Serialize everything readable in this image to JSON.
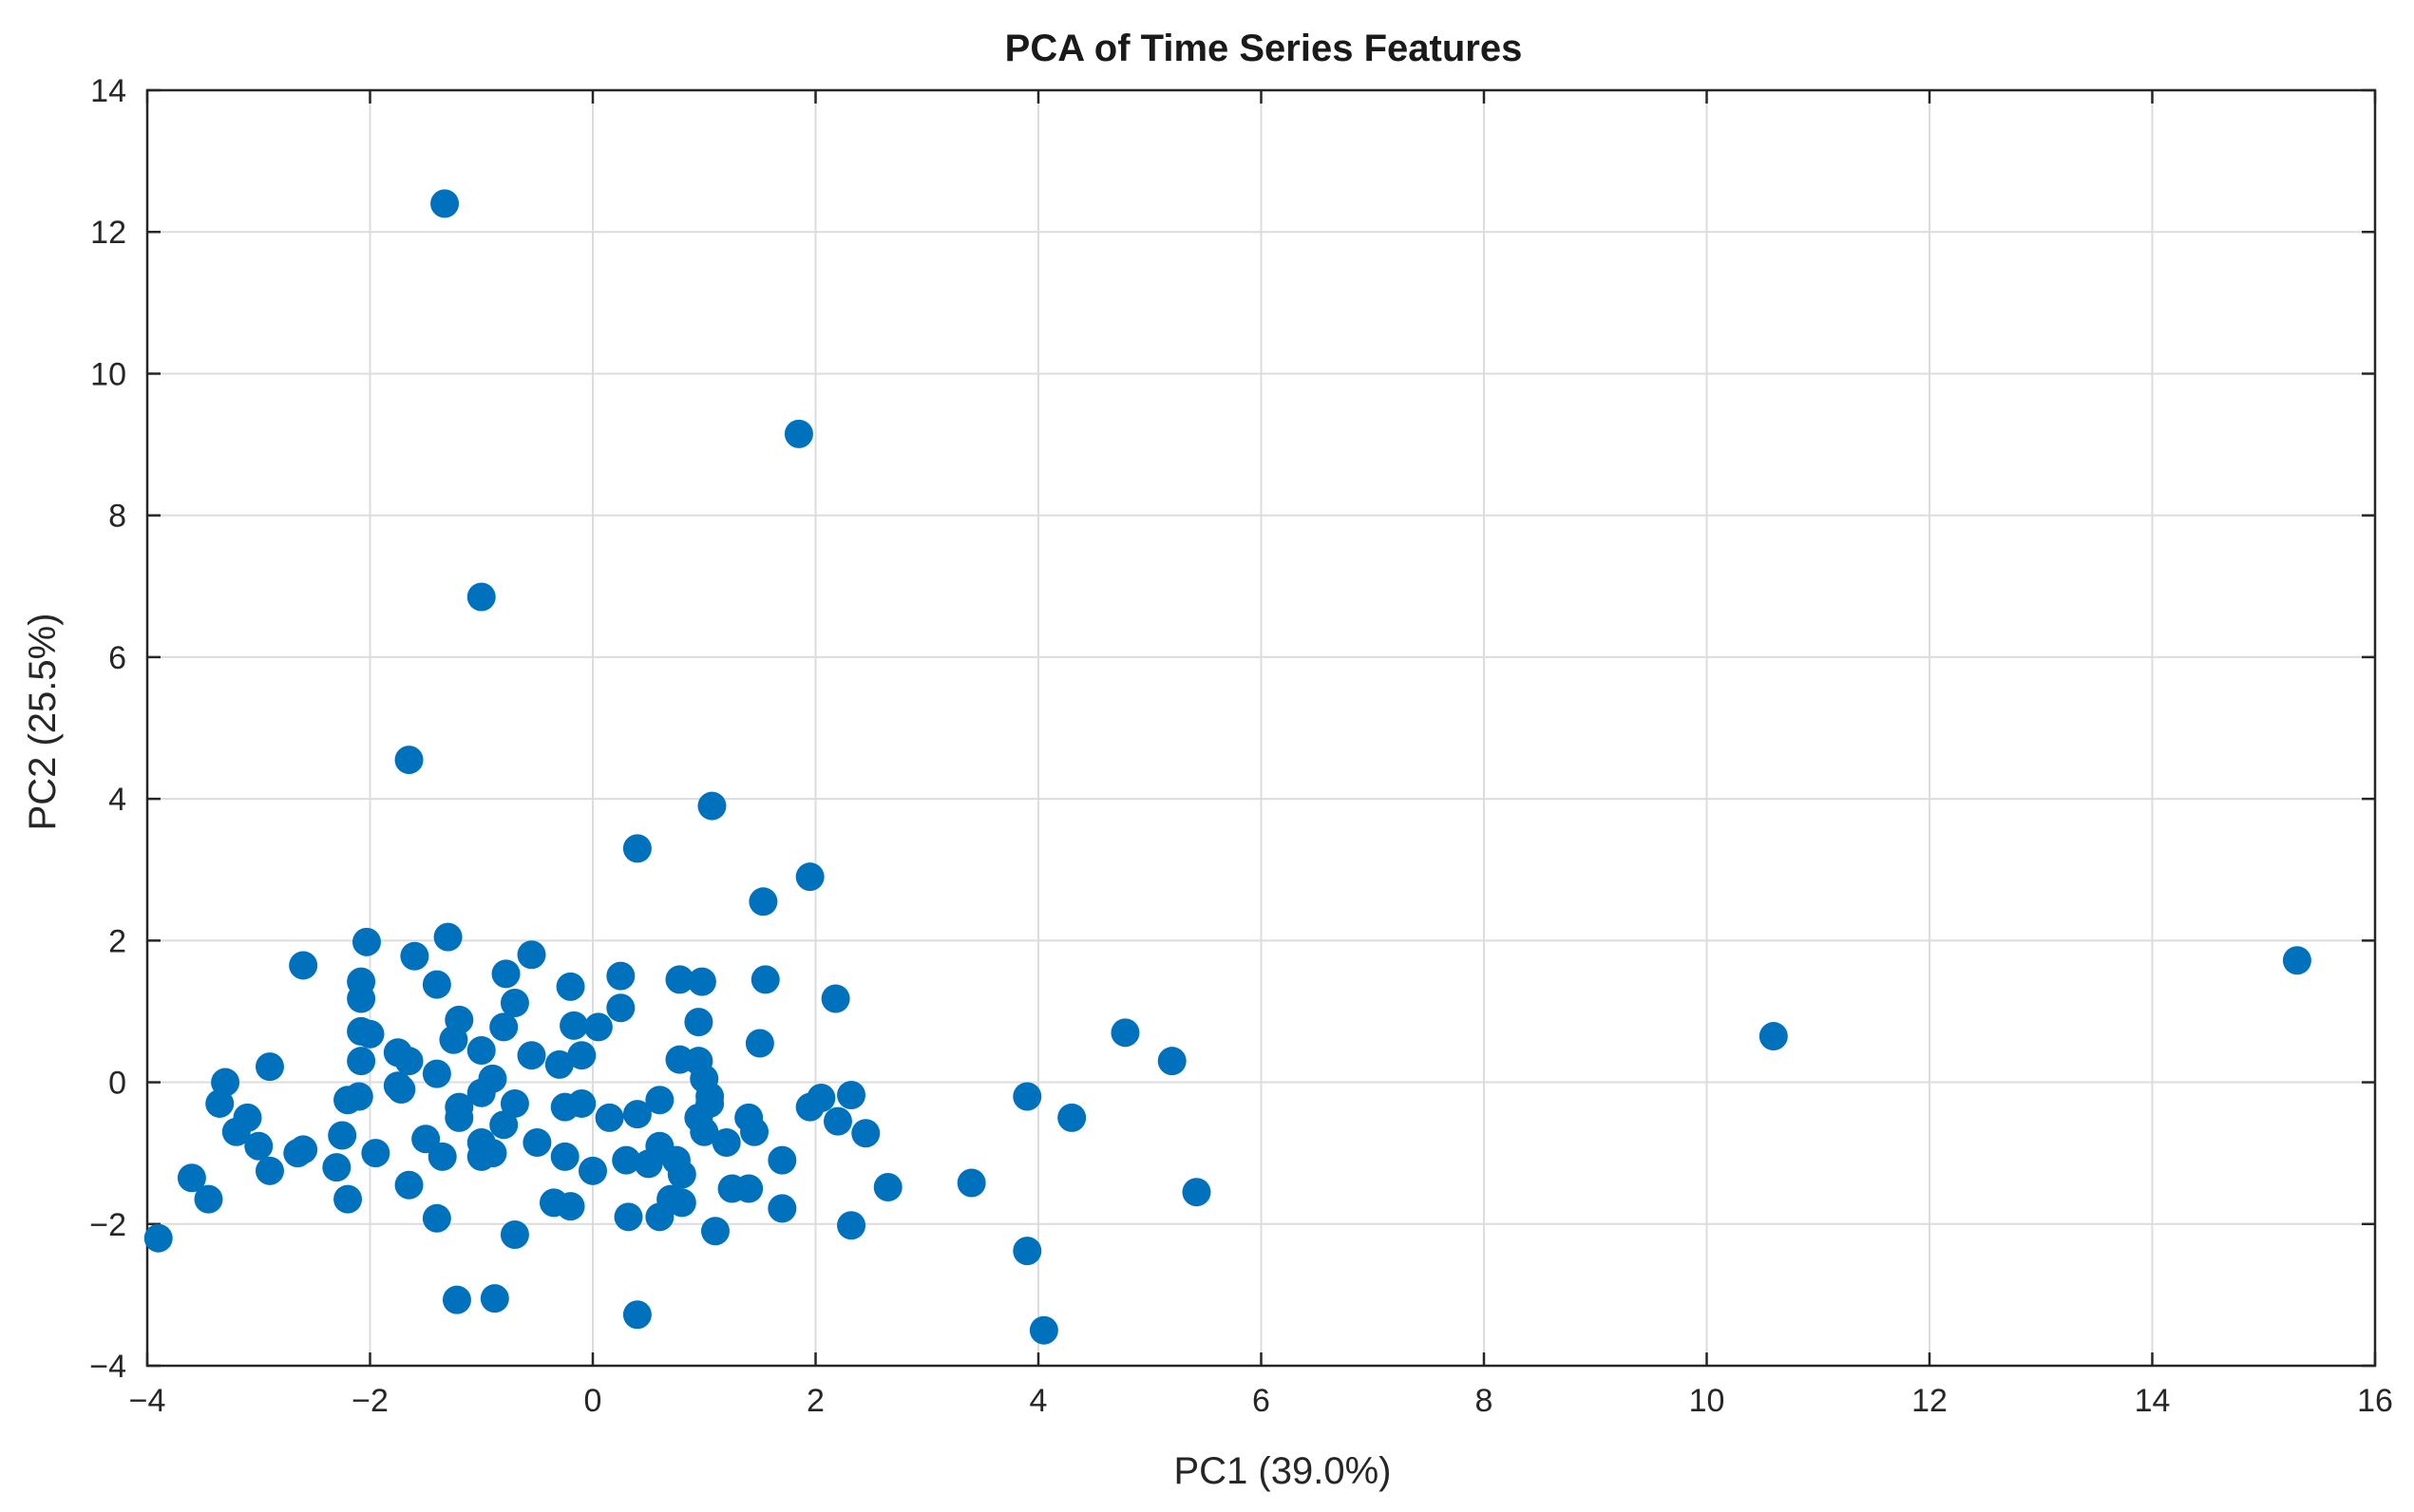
{
  "chart_data": {
    "type": "scatter",
    "title": "PCA of Time Series Features",
    "xlabel": "PC1 (39.0%)",
    "ylabel": "PC2 (25.5%)",
    "xlim": [
      -4,
      16
    ],
    "ylim": [
      -4,
      14
    ],
    "xticks": [
      -4,
      -2,
      0,
      2,
      4,
      6,
      8,
      10,
      12,
      14,
      16
    ],
    "yticks": [
      -4,
      -2,
      0,
      2,
      4,
      6,
      8,
      10,
      12,
      14
    ],
    "xtick_labels": [
      "−4",
      "−2",
      "0",
      "2",
      "4",
      "6",
      "8",
      "10",
      "12",
      "14",
      "16"
    ],
    "ytick_labels": [
      "−4",
      "−2",
      "0",
      "2",
      "4",
      "6",
      "8",
      "10",
      "12",
      "14"
    ],
    "grid": true,
    "marker_color": "#0072BD",
    "series": [
      {
        "points": [
          [
            -1.33,
            12.4
          ],
          [
            1.85,
            9.15
          ],
          [
            -1.0,
            6.85
          ],
          [
            -1.65,
            4.55
          ],
          [
            1.07,
            3.9
          ],
          [
            0.4,
            3.3
          ],
          [
            1.95,
            2.9
          ],
          [
            1.53,
            2.55
          ],
          [
            15.3,
            1.72
          ],
          [
            10.6,
            0.65
          ],
          [
            -2.6,
            1.65
          ],
          [
            -2.03,
            1.98
          ],
          [
            -1.3,
            2.05
          ],
          [
            -1.6,
            1.78
          ],
          [
            -1.4,
            1.38
          ],
          [
            -2.08,
            1.42
          ],
          [
            -2.08,
            1.18
          ],
          [
            -0.55,
            1.8
          ],
          [
            -0.78,
            1.53
          ],
          [
            -0.2,
            1.35
          ],
          [
            0.25,
            1.5
          ],
          [
            0.78,
            1.45
          ],
          [
            0.98,
            1.42
          ],
          [
            1.55,
            1.45
          ],
          [
            2.18,
            1.18
          ],
          [
            -0.7,
            1.12
          ],
          [
            0.25,
            1.05
          ],
          [
            4.78,
            0.7
          ],
          [
            -1.2,
            0.88
          ],
          [
            -1.25,
            0.6
          ],
          [
            -0.8,
            0.78
          ],
          [
            -0.17,
            0.8
          ],
          [
            0.05,
            0.78
          ],
          [
            0.95,
            0.85
          ],
          [
            1.5,
            0.55
          ],
          [
            -2.08,
            0.72
          ],
          [
            -2.0,
            0.68
          ],
          [
            -1.75,
            0.42
          ],
          [
            -1.65,
            0.3
          ],
          [
            -1.0,
            0.45
          ],
          [
            -0.55,
            0.38
          ],
          [
            -0.3,
            0.25
          ],
          [
            -0.1,
            0.38
          ],
          [
            0.78,
            0.32
          ],
          [
            0.95,
            0.3
          ],
          [
            5.2,
            0.3
          ],
          [
            -2.9,
            0.22
          ],
          [
            -2.08,
            0.3
          ],
          [
            -1.4,
            0.12
          ],
          [
            -0.9,
            0.05
          ],
          [
            1.0,
            0.05
          ],
          [
            -3.3,
            0.0
          ],
          [
            -1.75,
            -0.05
          ],
          [
            -1.72,
            -0.1
          ],
          [
            -1.0,
            -0.15
          ],
          [
            -2.2,
            -0.25
          ],
          [
            -2.1,
            -0.2
          ],
          [
            -0.7,
            -0.3
          ],
          [
            -0.25,
            -0.35
          ],
          [
            -0.1,
            -0.3
          ],
          [
            0.6,
            -0.25
          ],
          [
            1.05,
            -0.2
          ],
          [
            1.05,
            -0.3
          ],
          [
            1.95,
            -0.35
          ],
          [
            2.05,
            -0.22
          ],
          [
            2.32,
            -0.18
          ],
          [
            3.9,
            -0.2
          ],
          [
            -3.35,
            -0.3
          ],
          [
            -3.1,
            -0.5
          ],
          [
            -1.2,
            -0.35
          ],
          [
            -1.2,
            -0.5
          ],
          [
            0.15,
            -0.5
          ],
          [
            0.4,
            -0.45
          ],
          [
            0.95,
            -0.5
          ],
          [
            1.4,
            -0.5
          ],
          [
            2.2,
            -0.55
          ],
          [
            4.3,
            -0.5
          ],
          [
            -3.2,
            -0.7
          ],
          [
            -0.8,
            -0.6
          ],
          [
            -2.25,
            -0.75
          ],
          [
            -1.5,
            -0.8
          ],
          [
            -0.5,
            -0.85
          ],
          [
            1.0,
            -0.7
          ],
          [
            1.45,
            -0.7
          ],
          [
            2.45,
            -0.72
          ],
          [
            -3.0,
            -0.9
          ],
          [
            -2.6,
            -0.95
          ],
          [
            -1.0,
            -0.85
          ],
          [
            -0.9,
            -1.0
          ],
          [
            0.6,
            -0.9
          ],
          [
            1.2,
            -0.85
          ],
          [
            -2.65,
            -1.0
          ],
          [
            -1.95,
            -1.0
          ],
          [
            -1.35,
            -1.05
          ],
          [
            -1.0,
            -1.05
          ],
          [
            -0.25,
            -1.05
          ],
          [
            0.3,
            -1.1
          ],
          [
            0.5,
            -1.15
          ],
          [
            0.75,
            -1.1
          ],
          [
            1.7,
            -1.1
          ],
          [
            -2.9,
            -1.25
          ],
          [
            -2.3,
            -1.2
          ],
          [
            0.0,
            -1.25
          ],
          [
            -3.6,
            -1.35
          ],
          [
            -1.65,
            -1.45
          ],
          [
            0.8,
            -1.3
          ],
          [
            1.25,
            -1.5
          ],
          [
            1.4,
            -1.5
          ],
          [
            2.65,
            -1.48
          ],
          [
            3.4,
            -1.42
          ],
          [
            5.42,
            -1.55
          ],
          [
            -3.45,
            -1.65
          ],
          [
            -2.2,
            -1.65
          ],
          [
            -0.35,
            -1.7
          ],
          [
            -0.2,
            -1.75
          ],
          [
            0.7,
            -1.65
          ],
          [
            0.8,
            -1.7
          ],
          [
            1.7,
            -1.78
          ],
          [
            -1.4,
            -1.92
          ],
          [
            0.32,
            -1.9
          ],
          [
            0.6,
            -1.9
          ],
          [
            -0.7,
            -2.15
          ],
          [
            1.1,
            -2.1
          ],
          [
            2.32,
            -2.02
          ],
          [
            -3.9,
            -2.2
          ],
          [
            3.9,
            -2.38
          ],
          [
            -1.22,
            -3.07
          ],
          [
            -0.88,
            -3.05
          ],
          [
            0.4,
            -3.28
          ],
          [
            4.05,
            -3.5
          ]
        ]
      }
    ]
  }
}
